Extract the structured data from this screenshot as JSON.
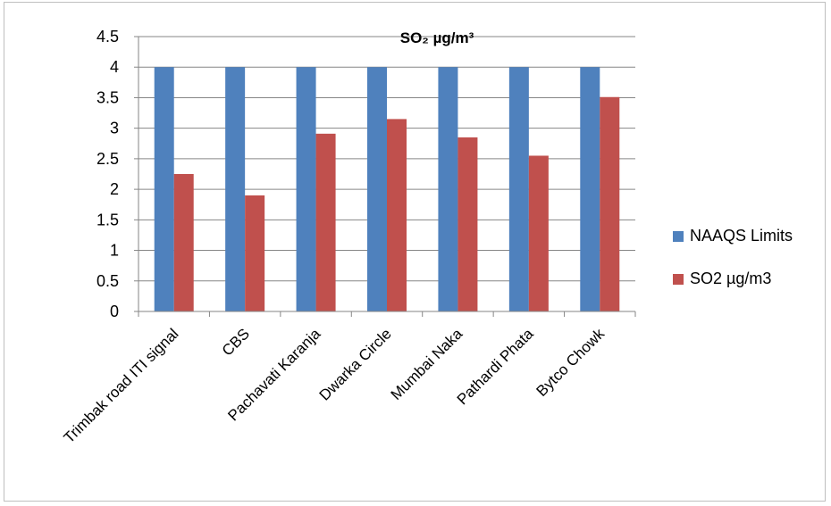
{
  "chart_data": {
    "type": "bar",
    "title": "SO₂ µg/m³",
    "xlabel": "",
    "ylabel": "",
    "ylim": [
      0,
      4.5
    ],
    "y_ticks": [
      0,
      0.5,
      1,
      1.5,
      2,
      2.5,
      3,
      3.5,
      4,
      4.5
    ],
    "y_tick_labels": [
      "0",
      "0.5",
      "1",
      "1.5",
      "2",
      "2.5",
      "3",
      "3.5",
      "4",
      "4.5"
    ],
    "grid": true,
    "legend_position": "right",
    "categories": [
      "Trimbak road ITI signal",
      "CBS",
      "Pachavati Karanja",
      "Dwarka Circle",
      "Mumbai Naka",
      "Pathardi Phata",
      "Bytco Chowk"
    ],
    "series": [
      {
        "name": "NAAQS Limits",
        "color": "#4f81bd",
        "values": [
          4,
          4,
          4,
          4,
          4,
          4,
          4
        ]
      },
      {
        "name": "SO2 µg/m3",
        "color": "#c0504d",
        "values": [
          2.25,
          1.9,
          2.91,
          3.15,
          2.85,
          2.55,
          3.51
        ]
      }
    ]
  }
}
